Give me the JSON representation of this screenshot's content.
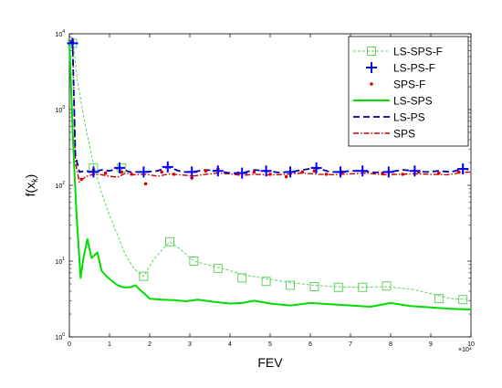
{
  "chart_data": {
    "type": "line",
    "xlabel": "FEV",
    "ylabel_base": "f(x",
    "ylabel_sub": "k",
    "ylabel_close": ")",
    "xlim": [
      0,
      10
    ],
    "x_exponent": "×10⁴",
    "x_ticks": [
      "0",
      "1",
      "2",
      "3",
      "4",
      "5",
      "6",
      "7",
      "8",
      "9",
      "10"
    ],
    "ylim": [
      1,
      10000
    ],
    "yscale": "log",
    "y_ticks": [
      {
        "base": "10",
        "exp": "0",
        "value": 1
      },
      {
        "base": "10",
        "exp": "1",
        "value": 10
      },
      {
        "base": "10",
        "exp": "2",
        "value": 100
      },
      {
        "base": "10",
        "exp": "3",
        "value": 1000
      },
      {
        "base": "10",
        "exp": "4",
        "value": 10000
      }
    ],
    "legend_position": "top-right",
    "series": [
      {
        "name": "LS-SPS-F",
        "color": "#5fd35f",
        "style": "dashed-thin",
        "marker": "square",
        "x": [
          0.08,
          0.1,
          0.2,
          0.4,
          0.6,
          0.8,
          1.0,
          1.2,
          1.4,
          1.6,
          1.85,
          2.1,
          2.3,
          2.5,
          2.75,
          3.1,
          3.5,
          3.8,
          4.4,
          4.8,
          5.5,
          6.1,
          6.6,
          7.3,
          7.9,
          8.6,
          9.5,
          10.0
        ],
        "y": [
          7500,
          7500,
          2400,
          600,
          190,
          80,
          40,
          22,
          12,
          8,
          6.3,
          10.5,
          14,
          18,
          14.5,
          10,
          8.8,
          8,
          6.5,
          6,
          5.2,
          4.8,
          4.6,
          4.5,
          4.6,
          4.2,
          3.2,
          3.1
        ],
        "marker_x": [
          0.08,
          0.6,
          1.3,
          1.85,
          2.5,
          3.1,
          3.7,
          4.3,
          4.9,
          5.5,
          6.1,
          6.7,
          7.3,
          7.9,
          9.2,
          9.8
        ],
        "marker_y": [
          7500,
          170,
          170,
          6.3,
          18,
          10,
          8,
          6,
          5.4,
          4.8,
          4.6,
          4.5,
          4.5,
          4.7,
          3.2,
          3.1
        ]
      },
      {
        "name": "LS-PS-F",
        "color": "#0000ff",
        "marker": "plus",
        "marker_x": [
          0.08,
          0.6,
          1.25,
          1.85,
          2.45,
          3.05,
          3.7,
          4.3,
          4.9,
          5.5,
          6.15,
          6.75,
          7.3,
          7.95,
          8.6,
          9.8
        ],
        "marker_y": [
          7500,
          150,
          170,
          150,
          175,
          150,
          155,
          145,
          155,
          150,
          170,
          150,
          155,
          150,
          155,
          165
        ]
      },
      {
        "name": "SPS-F",
        "color": "#dd0000",
        "marker": "dot",
        "marker_x": [
          0.08,
          0.3,
          0.6,
          0.9,
          1.3,
          1.55,
          1.9,
          2.3,
          2.6,
          3.05,
          3.4,
          3.7,
          4.2,
          4.6,
          5.0,
          5.4,
          5.8,
          6.1,
          6.4,
          6.8,
          7.3,
          7.8,
          8.3,
          8.7,
          9.2,
          9.7
        ],
        "marker_y": [
          8000,
          120,
          160,
          145,
          150,
          140,
          105,
          150,
          140,
          125,
          155,
          165,
          145,
          150,
          140,
          130,
          150,
          155,
          140,
          150,
          155,
          145,
          140,
          150,
          145,
          150
        ]
      },
      {
        "name": "LS-SPS",
        "color": "#00dd00",
        "style": "solid-thick",
        "x": [
          0.0,
          0.1,
          0.18,
          0.28,
          0.35,
          0.45,
          0.55,
          0.7,
          0.8,
          0.9,
          1.0,
          1.2,
          1.35,
          1.5,
          1.65,
          1.75,
          1.85,
          2.0,
          2.3,
          2.6,
          2.9,
          3.2,
          3.6,
          4.0,
          4.3,
          4.6,
          5.0,
          5.5,
          6.0,
          6.5,
          7.0,
          7.5,
          8.0,
          8.5,
          9.0,
          9.5,
          10.0
        ],
        "y": [
          8000,
          300,
          40,
          6,
          11,
          19.5,
          11,
          13,
          7.5,
          6.5,
          5.8,
          4.8,
          4.5,
          4.5,
          4.8,
          4.2,
          3.8,
          3.2,
          3.1,
          3.05,
          2.95,
          3.1,
          2.9,
          2.75,
          2.8,
          3.0,
          2.75,
          2.6,
          2.8,
          2.7,
          2.6,
          2.5,
          2.8,
          2.55,
          2.45,
          2.35,
          2.3
        ]
      },
      {
        "name": "LS-PS",
        "color": "#0000aa",
        "style": "dashed-thick",
        "x": [
          0.0,
          0.08,
          0.15,
          0.25,
          0.4,
          0.6,
          0.8,
          1.0,
          1.25,
          1.5,
          1.85,
          2.2,
          2.45,
          2.8,
          3.05,
          3.4,
          3.7,
          4.0,
          4.3,
          4.6,
          4.9,
          5.2,
          5.5,
          5.8,
          6.15,
          6.5,
          6.75,
          7.0,
          7.3,
          7.6,
          7.95,
          8.3,
          8.6,
          8.9,
          9.2,
          9.5,
          9.8,
          10.0
        ],
        "y": [
          8000,
          7500,
          250,
          150,
          155,
          150,
          160,
          155,
          170,
          150,
          150,
          155,
          175,
          150,
          150,
          160,
          155,
          145,
          145,
          160,
          155,
          148,
          150,
          160,
          170,
          150,
          150,
          155,
          155,
          148,
          150,
          160,
          155,
          150,
          155,
          150,
          165,
          160
        ]
      },
      {
        "name": "SPS",
        "color": "#cc0000",
        "style": "dashdot",
        "x": [
          0.0,
          0.08,
          0.15,
          0.25,
          0.4,
          0.6,
          0.8,
          1.0,
          1.2,
          1.4,
          1.6,
          1.9,
          2.2,
          2.5,
          2.8,
          3.1,
          3.4,
          3.7,
          4.0,
          4.3,
          4.6,
          5.0,
          5.4,
          5.8,
          6.2,
          6.6,
          7.0,
          7.4,
          7.8,
          8.2,
          8.6,
          9.0,
          9.4,
          9.8,
          10.0
        ],
        "y": [
          8000,
          8000,
          200,
          110,
          130,
          140,
          138,
          132,
          128,
          145,
          138,
          140,
          132,
          142,
          137,
          133,
          140,
          145,
          142,
          135,
          140,
          137,
          140,
          145,
          140,
          138,
          142,
          145,
          138,
          140,
          142,
          140,
          138,
          148,
          150
        ]
      }
    ]
  }
}
